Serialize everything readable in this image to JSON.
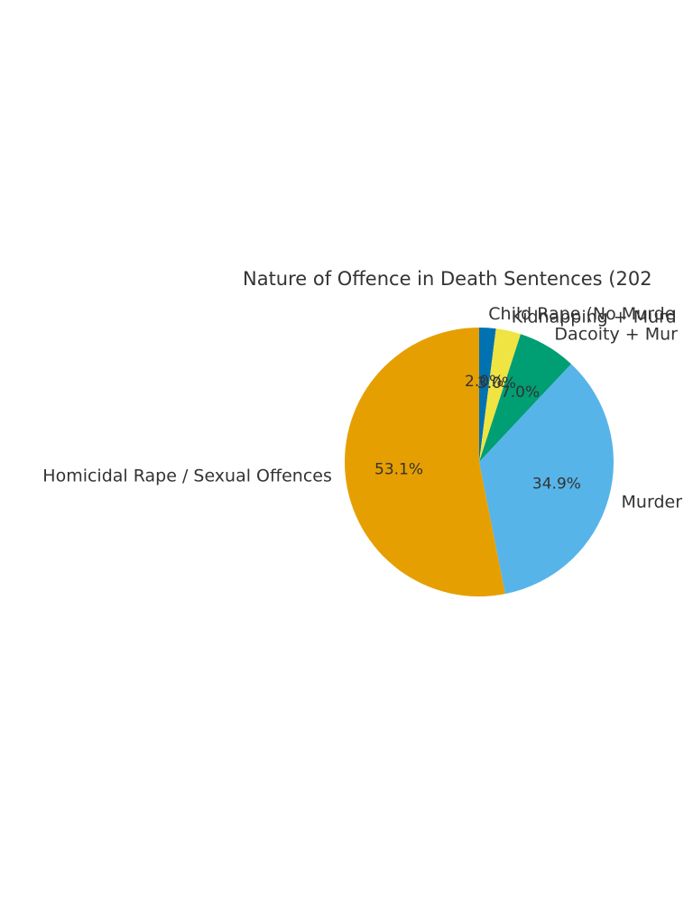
{
  "chart_data": {
    "type": "pie",
    "title": "Nature of Offence in Death Sentences (202",
    "start_angle_deg": 90,
    "direction": "clockwise",
    "slices": [
      {
        "label": "Child Rape (No Murde",
        "value": 2.0,
        "pct_label": "2.0%",
        "color": "#0072B2"
      },
      {
        "label": "Kidnapping + Murd",
        "value": 3.0,
        "pct_label": "3.0%",
        "color": "#F0E442"
      },
      {
        "label": "Dacoity + Mur",
        "value": 7.0,
        "pct_label": "7.0%",
        "color": "#009E73"
      },
      {
        "label": "Murder",
        "value": 34.9,
        "pct_label": "34.9%",
        "color": "#56B4E9"
      },
      {
        "label": "Homicidal Rape / Sexual Offences",
        "value": 53.1,
        "pct_label": "53.1%",
        "color": "#E69F00"
      }
    ]
  }
}
